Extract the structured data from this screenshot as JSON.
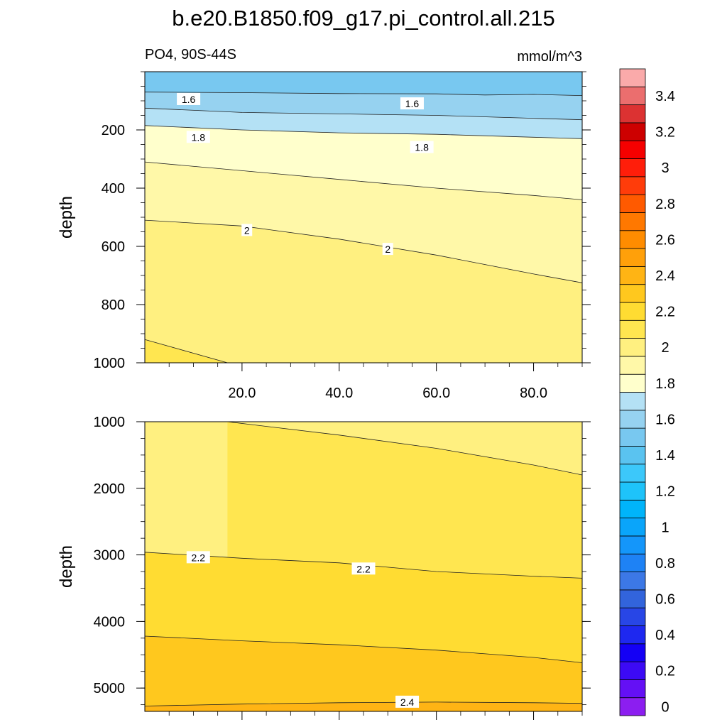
{
  "title": "b.e20.B1850.f09_g17.pi_control.all.215",
  "chart_data": {
    "type": "heatmap",
    "subtitle_left": "PO4, 90S-44S",
    "subtitle_right": "mmol/m^3",
    "colorbar": {
      "levels": [
        0,
        0.1,
        0.2,
        0.3,
        0.4,
        0.5,
        0.6,
        0.7,
        0.8,
        0.9,
        1.0,
        1.1,
        1.2,
        1.3,
        1.4,
        1.5,
        1.6,
        1.7,
        1.8,
        1.9,
        2.0,
        2.1,
        2.2,
        2.3,
        2.4,
        2.5,
        2.6,
        2.7,
        2.8,
        2.9,
        3.0,
        3.1,
        3.2,
        3.3,
        3.4,
        3.5
      ],
      "tick_labels": [
        "0",
        "0.2",
        "0.4",
        "0.6",
        "0.8",
        "1",
        "1.2",
        "1.4",
        "1.6",
        "1.8",
        "2",
        "2.2",
        "2.4",
        "2.6",
        "2.8",
        "3",
        "3.2",
        "3.4"
      ],
      "colors": [
        "#8c1ef0",
        "#6410f5",
        "#3c0af5",
        "#1400f5",
        "#1e28f0",
        "#2846e6",
        "#3264dc",
        "#3c78e6",
        "#1e82f5",
        "#1496fa",
        "#0aa5fa",
        "#00b4fa",
        "#1ec3fa",
        "#3cc8fa",
        "#5ac3f0",
        "#78c8f0",
        "#96d2f0",
        "#b4e1f5",
        "#ffffcc",
        "#fff8a8",
        "#fff080",
        "#ffe650",
        "#ffdc32",
        "#ffc81e",
        "#ffb414",
        "#ffa00a",
        "#ff8c00",
        "#ff7800",
        "#ff5a00",
        "#ff3c0a",
        "#ff1e0a",
        "#f50000",
        "#cd0000",
        "#dc3232",
        "#eb6e6e",
        "#faaaaa"
      ]
    },
    "panels": [
      {
        "ylabel": "depth",
        "ylim": [
          0,
          1000
        ],
        "xlim": [
          0,
          90
        ],
        "y_ticks": [
          200,
          400,
          600,
          800,
          1000
        ],
        "y_tick_labels": [
          "200",
          "400",
          "600",
          "800",
          "1000"
        ],
        "x_ticks": [
          20,
          40,
          60,
          80
        ],
        "x_tick_labels": [
          "20.0",
          "40.0",
          "60.0",
          "80.0"
        ],
        "top_value": 1.5,
        "bottom_value": 2.2,
        "contours": [
          {
            "value": 1.6,
            "x": [
              0,
              20,
              40,
              60,
              70,
              80,
              90
            ],
            "y": [
              70,
              72,
              75,
              76,
              80,
              78,
              82
            ]
          },
          {
            "value": 1.7,
            "x": [
              0,
              20,
              40,
              60,
              80,
              90
            ],
            "y": [
              125,
              140,
              145,
              150,
              160,
              165
            ]
          },
          {
            "value": 1.8,
            "x": [
              0,
              20,
              40,
              60,
              80,
              90
            ],
            "y": [
              185,
              200,
              210,
              215,
              225,
              230
            ]
          },
          {
            "value": 1.9,
            "x": [
              0,
              20,
              40,
              60,
              80,
              90
            ],
            "y": [
              310,
              340,
              370,
              400,
              425,
              440
            ]
          },
          {
            "value": 2.0,
            "x": [
              0,
              20,
              40,
              60,
              80,
              90
            ],
            "y": [
              510,
              530,
              575,
              630,
              695,
              725
            ]
          },
          {
            "value": 2.1,
            "x": [
              0,
              17
            ],
            "y": [
              920,
              1000
            ]
          }
        ],
        "contour_labels": [
          {
            "text": "1.6",
            "x": 9,
            "y": 95
          },
          {
            "text": "1.6",
            "x": 55,
            "y": 110
          },
          {
            "text": "1.8",
            "x": 11,
            "y": 225
          },
          {
            "text": "1.8",
            "x": 57,
            "y": 260
          },
          {
            "text": "2",
            "x": 21,
            "y": 545
          },
          {
            "text": "2",
            "x": 50,
            "y": 610
          }
        ]
      },
      {
        "ylabel": "depth",
        "ylim": [
          1000,
          5350
        ],
        "xlim": [
          0,
          90
        ],
        "y_ticks": [
          1000,
          2000,
          3000,
          4000,
          5000
        ],
        "y_tick_labels": [
          "1000",
          "2000",
          "3000",
          "4000",
          "5000"
        ],
        "x_ticks": [
          20,
          40,
          60,
          80
        ],
        "x_tick_labels": [],
        "top_value": 2.0,
        "bottom_value": 2.4,
        "contours": [
          {
            "value": 2.1,
            "x": [
              17,
              40,
              60,
              80,
              90
            ],
            "y": [
              1000,
              1200,
              1400,
              1650,
              1800
            ]
          },
          {
            "value": 2.2,
            "x": [
              0,
              20,
              40,
              60,
              80,
              90
            ],
            "y": [
              2960,
              3050,
              3120,
              3250,
              3320,
              3350
            ]
          },
          {
            "value": 2.3,
            "x": [
              0,
              20,
              40,
              60,
              80,
              90
            ],
            "y": [
              4220,
              4290,
              4350,
              4430,
              4540,
              4620
            ]
          },
          {
            "value": 2.4,
            "x": [
              0,
              20,
              40,
              60,
              80,
              90
            ],
            "y": [
              5270,
              5240,
              5220,
              5210,
              5220,
              5230
            ]
          }
        ],
        "contour_labels": [
          {
            "text": "2.2",
            "x": 11,
            "y": 3040
          },
          {
            "text": "2.2",
            "x": 45,
            "y": 3210
          },
          {
            "text": "2.4",
            "x": 54,
            "y": 5210
          }
        ]
      }
    ]
  }
}
